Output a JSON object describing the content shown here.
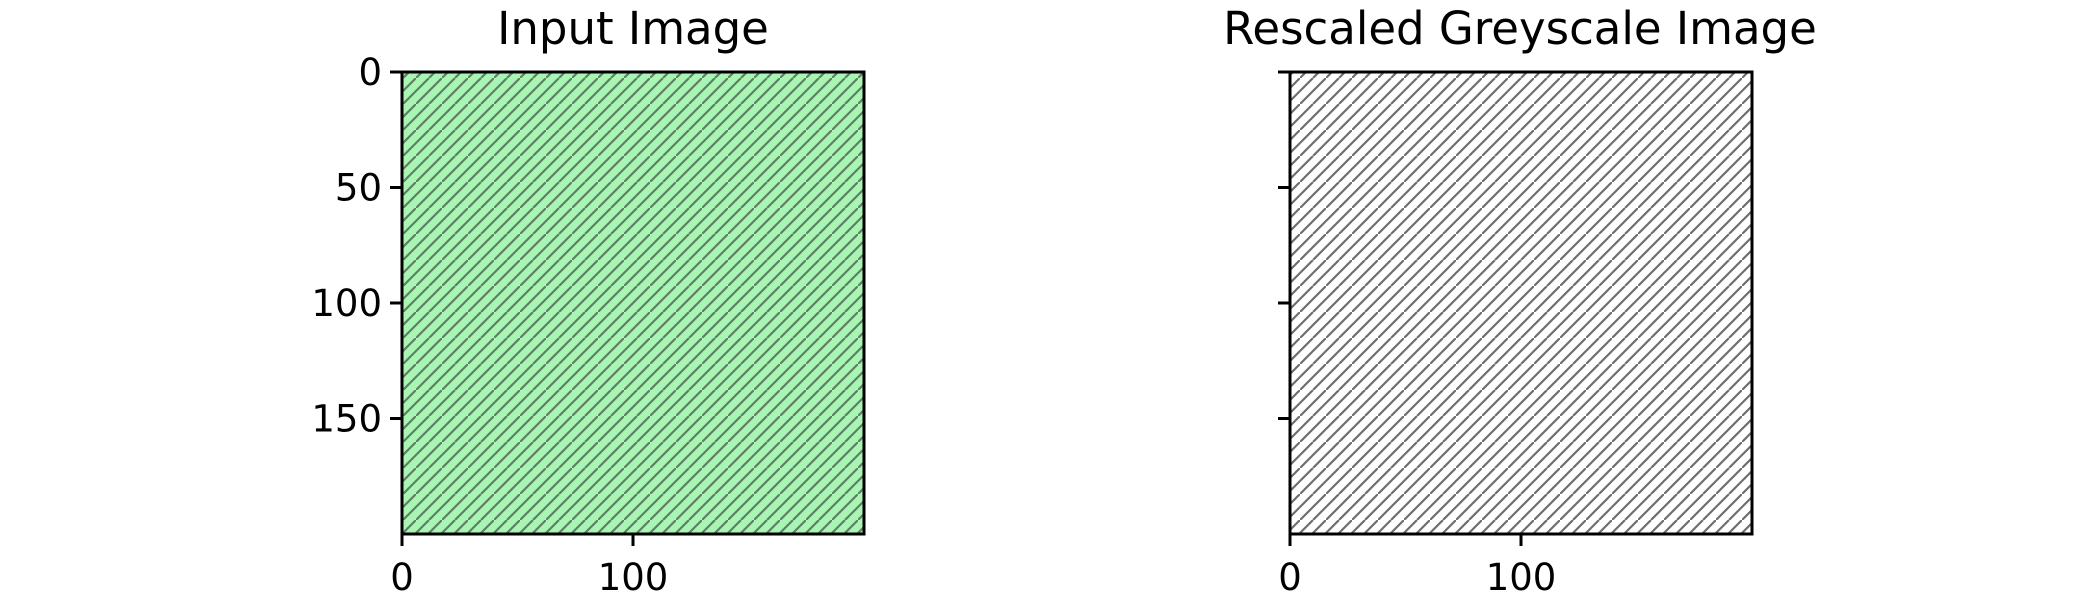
{
  "chart_data": [
    {
      "type": "image",
      "title": "Input Image",
      "fill_color": "#a8f5b4",
      "hatch_color": "#5f7f64",
      "pattern": "diagonal-hatch",
      "xlim": [
        0,
        200
      ],
      "ylim": [
        200,
        0
      ],
      "x_ticks": [
        0,
        100
      ],
      "x_tick_labels": [
        "0",
        "100"
      ],
      "y_ticks": [
        0,
        50,
        100,
        150
      ],
      "y_tick_labels": [
        "0",
        "50",
        "100",
        "150"
      ],
      "show_y_tick_labels": true
    },
    {
      "type": "image",
      "title": "Rescaled Greyscale Image",
      "fill_color": "#ffffff",
      "hatch_color": "#6e6e6e",
      "pattern": "diagonal-hatch",
      "xlim": [
        0,
        200
      ],
      "ylim": [
        200,
        0
      ],
      "x_ticks": [
        0,
        100
      ],
      "x_tick_labels": [
        "0",
        "100"
      ],
      "y_ticks": [
        0,
        50,
        100,
        150
      ],
      "y_tick_labels": [],
      "show_y_tick_labels": false
    }
  ]
}
